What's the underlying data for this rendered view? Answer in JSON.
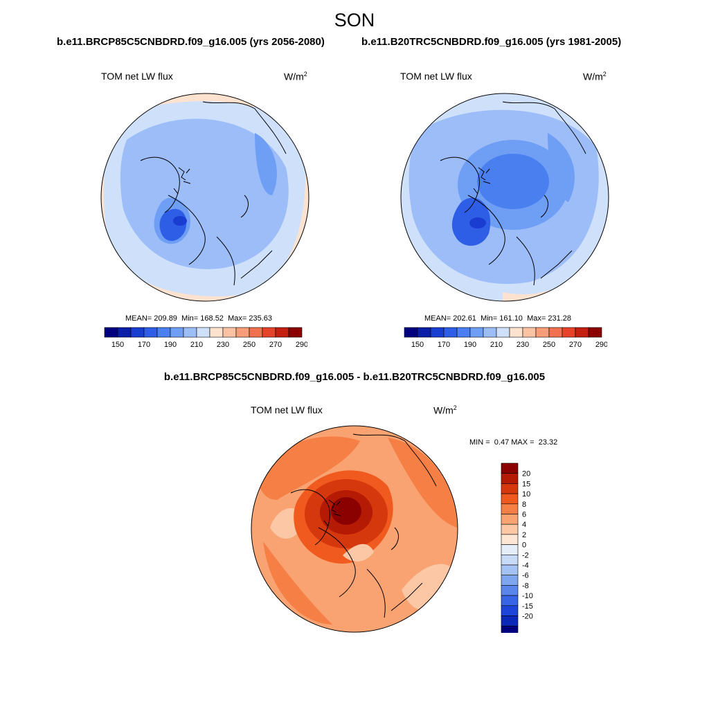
{
  "figure": {
    "season": "SON",
    "test_title": "b.e11.BRCP85C5CNBDRD.f09_g16.005 (yrs 2056-2080)",
    "control_title": "b.e11.B20TRC5CNBDRD.f09_g16.005 (yrs 1981-2005)",
    "diff_title": "b.e11.BRCP85C5CNBDRD.f09_g16.005 - b.e11.B20TRC5CNBDRD.f09_g16.005"
  },
  "panels": {
    "test": {
      "variable": "TOM net LW flux",
      "units_base": "W/m",
      "units_exp": "2",
      "mean_label": "MEAN=",
      "mean_value": "209.89",
      "min_label": "Min=",
      "min_value": "168.52",
      "max_label": "Max=",
      "max_value": "235.63"
    },
    "control": {
      "variable": "TOM net LW flux",
      "units_base": "W/m",
      "units_exp": "2",
      "mean_label": "MEAN=",
      "mean_value": "202.61",
      "min_label": "Min=",
      "min_value": "161.10",
      "max_label": "Max=",
      "max_value": "231.28"
    },
    "diff": {
      "variable": "TOM net LW flux",
      "units_base": "W/m",
      "units_exp": "2",
      "min_label": "MIN =",
      "min_value": "0.47",
      "max_label": "MAX =",
      "max_value": "23.32"
    }
  },
  "colorbars": {
    "absolute": {
      "colors": [
        "#00007f",
        "#0a1fa8",
        "#1a3dd1",
        "#2e5ee6",
        "#4a7ff0",
        "#6f9ef5",
        "#9cbdf8",
        "#cfe0fb",
        "#fde3cf",
        "#fbc3a4",
        "#f79d79",
        "#f0704f",
        "#e4442a",
        "#c4200f",
        "#8b0000"
      ],
      "tick_labels": [
        "150",
        "170",
        "190",
        "210",
        "230",
        "250",
        "270",
        "290"
      ]
    },
    "difference": {
      "colors": [
        "#8b0000",
        "#b51a05",
        "#d6380d",
        "#f05a1e",
        "#f57f45",
        "#f9a372",
        "#fcc7a4",
        "#fde6d3",
        "#e4edf8",
        "#c7daf6",
        "#a4c2f3",
        "#7ea6ef",
        "#5a86eb",
        "#3865e6",
        "#1d45d9",
        "#0b28b8",
        "#00007f"
      ],
      "tick_labels": [
        "20",
        "15",
        "10",
        "8",
        "6",
        "4",
        "2",
        "0",
        "-2",
        "-4",
        "-6",
        "-8",
        "-10",
        "-15",
        "-20"
      ]
    }
  }
}
